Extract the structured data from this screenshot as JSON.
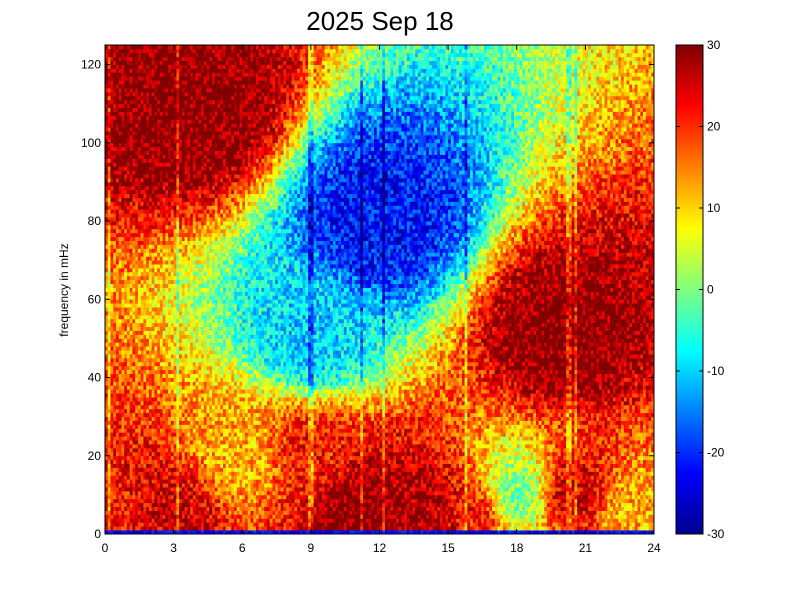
{
  "chart_data": {
    "type": "heatmap",
    "title": "2025 Sep 18",
    "xlabel": "",
    "ylabel": "frequency in mHz",
    "x_range": [
      0,
      24
    ],
    "y_range": [
      0,
      125
    ],
    "x_ticks": [
      0,
      3,
      6,
      9,
      12,
      15,
      18,
      21,
      24
    ],
    "y_ticks": [
      0,
      20,
      40,
      60,
      80,
      100,
      120
    ],
    "colorbar": {
      "colormap": "jet",
      "range": [
        -30,
        30
      ],
      "ticks": [
        -30,
        -20,
        -10,
        0,
        10,
        20,
        30
      ]
    },
    "saturation_colors": {
      "low": "#00008f",
      "high": "#800000"
    },
    "grid": false,
    "z_description_points": [
      {
        "hour": 0,
        "freq_mHz": 5,
        "value": 22
      },
      {
        "hour": 3,
        "freq_mHz": 5,
        "value": 25
      },
      {
        "hour": 6,
        "freq_mHz": 20,
        "value": 12
      },
      {
        "hour": 9,
        "freq_mHz": 20,
        "value": 22
      },
      {
        "hour": 11,
        "freq_mHz": 5,
        "value": 30
      },
      {
        "hour": 14,
        "freq_mHz": 5,
        "value": 28
      },
      {
        "hour": 16,
        "freq_mHz": 5,
        "value": 22
      },
      {
        "hour": 18,
        "freq_mHz": 10,
        "value": 0
      },
      {
        "hour": 20.5,
        "freq_mHz": 10,
        "value": 25
      },
      {
        "hour": 23,
        "freq_mHz": 5,
        "value": 12
      },
      {
        "hour": 9,
        "freq_mHz": 50,
        "value": -10
      },
      {
        "hour": 12,
        "freq_mHz": 80,
        "value": -22
      },
      {
        "hour": 20,
        "freq_mHz": 50,
        "value": 30
      },
      {
        "hour": 4,
        "freq_mHz": 110,
        "value": 30
      }
    ],
    "vertical_streaks_hours": [
      0.2,
      3.2,
      9.0,
      11.2,
      12.2,
      15.8,
      20.3,
      20.6
    ]
  }
}
